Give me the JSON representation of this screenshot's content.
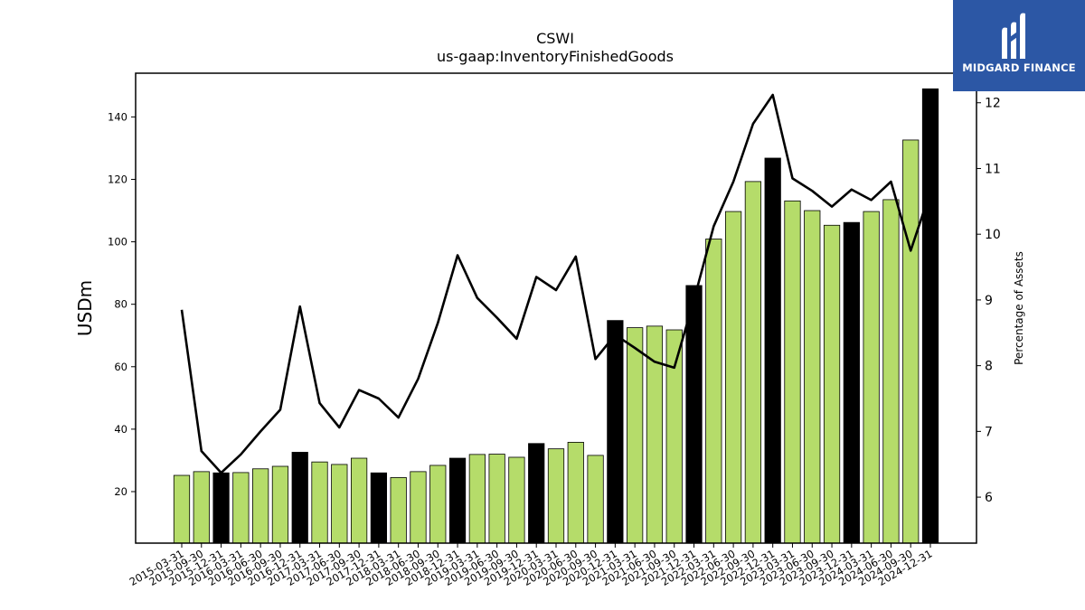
{
  "chart_data": {
    "type": "bar",
    "title": "CSWI",
    "subtitle": "us-gaap:InventoryFinishedGoods",
    "ylabel": "USDm",
    "y2label": "Percentage of Assets",
    "ylim": [
      3.5,
      154
    ],
    "y2lim": [
      5.3,
      12.45
    ],
    "yticks": [
      20,
      40,
      60,
      80,
      100,
      120,
      140
    ],
    "y2ticks": [
      6,
      7,
      8,
      9,
      10,
      11,
      12
    ],
    "bar_colors": {
      "normal": "#b5dc6a",
      "highlight": "#000000"
    },
    "line_color": "#000000",
    "categories": [
      "2015-03-31",
      "2015-09-30",
      "2015-12-31",
      "2016-03-31",
      "2016-06-30",
      "2016-09-30",
      "2016-12-31",
      "2017-03-31",
      "2017-06-30",
      "2017-09-30",
      "2017-12-31",
      "2018-03-31",
      "2018-06-30",
      "2018-09-30",
      "2018-12-31",
      "2019-03-31",
      "2019-06-30",
      "2019-09-30",
      "2019-12-31",
      "2020-03-31",
      "2020-06-30",
      "2020-09-30",
      "2020-12-31",
      "2021-03-31",
      "2021-06-30",
      "2021-09-30",
      "2021-12-31",
      "2022-03-31",
      "2022-06-30",
      "2022-09-30",
      "2022-12-31",
      "2023-03-31",
      "2023-06-30",
      "2023-09-30",
      "2023-12-31",
      "2024-03-31",
      "2024-06-30",
      "2024-09-30",
      "2024-12-31"
    ],
    "series": [
      {
        "type": "bar",
        "values": [
          25.2,
          26.4,
          26.0,
          26.1,
          27.3,
          28.1,
          32.6,
          29.5,
          28.7,
          30.7,
          26.0,
          24.5,
          26.4,
          28.4,
          30.7,
          31.9,
          32.0,
          31.0,
          35.4,
          33.7,
          35.8,
          31.6,
          74.8,
          72.5,
          73.0,
          71.8,
          86.0,
          100.9,
          109.7,
          119.3,
          126.8,
          113.1,
          110.0,
          105.3,
          106.2,
          109.7,
          113.5,
          132.6,
          149.0
        ],
        "highlight": [
          false,
          false,
          true,
          false,
          false,
          false,
          true,
          false,
          false,
          false,
          true,
          false,
          false,
          false,
          true,
          false,
          false,
          false,
          true,
          false,
          false,
          false,
          true,
          false,
          false,
          false,
          true,
          false,
          false,
          false,
          true,
          false,
          false,
          false,
          true,
          false,
          false,
          false,
          true
        ]
      },
      {
        "type": "line",
        "axis": "right",
        "values": [
          8.85,
          6.7,
          6.37,
          6.65,
          7.0,
          7.33,
          8.9,
          7.43,
          7.06,
          7.63,
          7.5,
          7.21,
          7.8,
          8.65,
          9.68,
          9.03,
          8.73,
          8.41,
          9.35,
          9.15,
          9.66,
          8.1,
          8.47,
          8.27,
          8.06,
          7.97,
          9.0,
          10.12,
          10.8,
          11.68,
          12.12,
          10.85,
          10.66,
          10.42,
          10.68,
          10.52,
          10.8,
          9.75,
          10.65
        ]
      }
    ]
  },
  "logo": {
    "text": "MIDGARD FINANCE",
    "icon": "midgard-m-logo-icon"
  }
}
